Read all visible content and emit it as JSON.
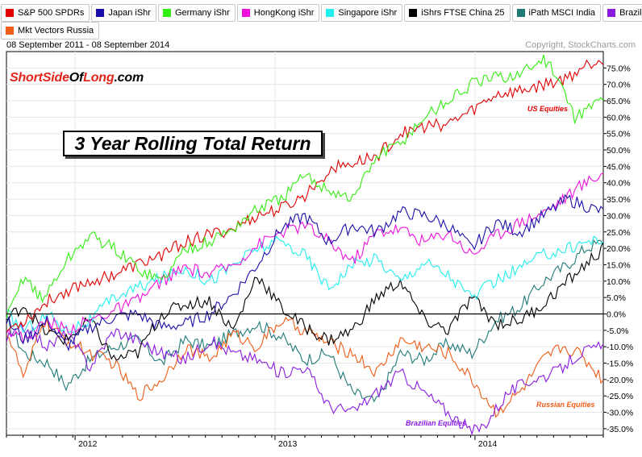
{
  "legend": [
    {
      "label": "S&P 500 SPDRs",
      "color": "#e00000"
    },
    {
      "label": "Japan iShr",
      "color": "#1a0fa8"
    },
    {
      "label": "Germany iShr",
      "color": "#33ee11"
    },
    {
      "label": "HongKong iShr",
      "color": "#ee11dd"
    },
    {
      "label": "Singapore iShr",
      "color": "#22eeee"
    },
    {
      "label": "iShrs FTSE China 25",
      "color": "#000000"
    },
    {
      "label": "iPath MSCI India",
      "color": "#1f7a78"
    },
    {
      "label": "Brazil iShr",
      "color": "#8a1be0"
    },
    {
      "label": "Mkt Vectors Russia",
      "color": "#ee5b16"
    }
  ],
  "header": {
    "date_range": "08 September 2011 - 08 September 2014",
    "copyright": "Copyright, StockCharts.com"
  },
  "watermark": {
    "part1": "ShortSide",
    "part2": "Of",
    "part3": "Long",
    "part4": ".com"
  },
  "title": "3 Year Rolling Total Return",
  "chart_data": {
    "type": "line",
    "title": "3 Year Rolling Total Return",
    "x_range": [
      "2011-09-08",
      "2014-09-08"
    ],
    "x_ticks": [
      "2012",
      "2013",
      "2014"
    ],
    "ylim": [
      -37,
      80
    ],
    "y_ticks": [
      "75.0%",
      "70.0%",
      "65.0%",
      "60.0%",
      "55.0%",
      "50.0%",
      "45.0%",
      "40.0%",
      "35.0%",
      "30.0%",
      "25.0%",
      "20.0%",
      "15.0%",
      "10.0%",
      "5.0%",
      "0.0%",
      "-5.0%",
      "-10.0%",
      "-15.0%",
      "-20.0%",
      "-25.0%",
      "-30.0%",
      "-35.0%"
    ],
    "y_tick_values": [
      75,
      70,
      65,
      60,
      55,
      50,
      45,
      40,
      35,
      30,
      25,
      20,
      15,
      10,
      5,
      0,
      -5,
      -10,
      -15,
      -20,
      -25,
      -30,
      -35
    ],
    "series": [
      {
        "name": "iPath MSCI India",
        "color": "#1f7a78",
        "x": [
          0,
          0.03,
          0.07,
          0.1,
          0.14,
          0.18,
          0.22,
          0.26,
          0.3,
          0.34,
          0.38,
          0.42,
          0.46,
          0.5,
          0.54,
          0.58,
          0.62,
          0.66,
          0.7,
          0.74,
          0.78,
          0.82,
          0.86,
          0.9,
          0.94,
          0.97,
          1
        ],
        "y": [
          -2,
          -12,
          -15,
          -22,
          -14,
          -10,
          -8,
          -15,
          -8,
          -10,
          -6,
          -3,
          -7,
          -14,
          -12,
          -24,
          -27,
          -12,
          -14,
          -9,
          -12,
          -2,
          2,
          10,
          15,
          20,
          22
        ]
      },
      {
        "name": "Mkt Vectors Russia",
        "color": "#ee5b16",
        "x": [
          0,
          0.03,
          0.06,
          0.1,
          0.14,
          0.18,
          0.22,
          0.26,
          0.3,
          0.34,
          0.38,
          0.42,
          0.46,
          0.5,
          0.54,
          0.58,
          0.62,
          0.66,
          0.7,
          0.74,
          0.78,
          0.82,
          0.86,
          0.9,
          0.93,
          0.96,
          1
        ],
        "y": [
          -5,
          -20,
          -2,
          -8,
          -12,
          -15,
          -25,
          -20,
          -10,
          -14,
          -6,
          -10,
          -2,
          -5,
          -9,
          -12,
          -18,
          -8,
          -10,
          -12,
          -20,
          -30,
          -24,
          -14,
          -10,
          -12,
          -20
        ]
      },
      {
        "name": "Brazil iShr",
        "color": "#8a1be0",
        "x": [
          0,
          0.03,
          0.07,
          0.1,
          0.14,
          0.18,
          0.22,
          0.26,
          0.3,
          0.34,
          0.38,
          0.42,
          0.46,
          0.5,
          0.54,
          0.58,
          0.62,
          0.66,
          0.7,
          0.74,
          0.78,
          0.8,
          0.84,
          0.88,
          0.92,
          0.96,
          1
        ],
        "y": [
          -8,
          -4,
          -10,
          -6,
          -16,
          -5,
          -8,
          -12,
          -14,
          -8,
          -12,
          -14,
          -18,
          -16,
          -28,
          -30,
          -24,
          -18,
          -24,
          -30,
          -36,
          -34,
          -24,
          -20,
          -18,
          -12,
          -10
        ]
      },
      {
        "name": "iShrs FTSE China 25",
        "color": "#000000",
        "x": [
          0,
          0.03,
          0.06,
          0.1,
          0.14,
          0.18,
          0.22,
          0.26,
          0.3,
          0.34,
          0.38,
          0.42,
          0.46,
          0.5,
          0.54,
          0.58,
          0.62,
          0.66,
          0.7,
          0.74,
          0.78,
          0.82,
          0.86,
          0.9,
          0.94,
          0.97,
          1
        ],
        "y": [
          -2,
          3,
          -5,
          -8,
          -2,
          -14,
          -12,
          0,
          3,
          4,
          -5,
          12,
          2,
          -4,
          -8,
          -5,
          5,
          10,
          -2,
          -5,
          5,
          -3,
          -2,
          3,
          10,
          15,
          20
        ]
      },
      {
        "name": "Singapore iShr",
        "color": "#22eeee",
        "x": [
          0,
          0.03,
          0.07,
          0.1,
          0.14,
          0.18,
          0.22,
          0.26,
          0.3,
          0.34,
          0.38,
          0.42,
          0.46,
          0.5,
          0.54,
          0.58,
          0.62,
          0.66,
          0.7,
          0.74,
          0.78,
          0.82,
          0.86,
          0.9,
          0.94,
          0.97,
          1
        ],
        "y": [
          0,
          -5,
          0,
          -5,
          -2,
          5,
          8,
          11,
          14,
          10,
          15,
          20,
          22,
          18,
          8,
          15,
          17,
          10,
          16,
          12,
          5,
          10,
          14,
          18,
          20,
          22,
          23
        ]
      },
      {
        "name": "HongKong iShr",
        "color": "#ee11dd",
        "x": [
          0,
          0.03,
          0.07,
          0.1,
          0.14,
          0.18,
          0.22,
          0.26,
          0.3,
          0.34,
          0.38,
          0.42,
          0.46,
          0.5,
          0.54,
          0.58,
          0.62,
          0.66,
          0.7,
          0.74,
          0.78,
          0.82,
          0.86,
          0.9,
          0.94,
          0.97,
          1
        ],
        "y": [
          -4,
          -8,
          -2,
          -5,
          -2,
          1,
          4,
          10,
          14,
          12,
          15,
          21,
          25,
          27,
          22,
          16,
          25,
          26,
          22,
          25,
          18,
          24,
          28,
          31,
          36,
          40,
          43
        ]
      },
      {
        "name": "Japan iShr",
        "color": "#1a0fa8",
        "x": [
          0,
          0.03,
          0.07,
          0.1,
          0.14,
          0.18,
          0.22,
          0.26,
          0.3,
          0.34,
          0.38,
          0.42,
          0.46,
          0.5,
          0.54,
          0.58,
          0.62,
          0.66,
          0.7,
          0.74,
          0.78,
          0.82,
          0.86,
          0.9,
          0.94,
          0.97,
          1
        ],
        "y": [
          -2,
          -8,
          -2,
          -10,
          -4,
          -1,
          0,
          -4,
          -3,
          0,
          6,
          15,
          26,
          30,
          22,
          27,
          25,
          31,
          30,
          27,
          20,
          28,
          25,
          30,
          35,
          33,
          31
        ]
      },
      {
        "name": "S&P 500 SPDRs",
        "color": "#e00000",
        "x": [
          0,
          0.03,
          0.07,
          0.1,
          0.14,
          0.18,
          0.22,
          0.26,
          0.3,
          0.34,
          0.38,
          0.42,
          0.46,
          0.5,
          0.54,
          0.58,
          0.62,
          0.66,
          0.7,
          0.74,
          0.78,
          0.82,
          0.86,
          0.9,
          0.94,
          0.97,
          1
        ],
        "y": [
          -5,
          -2,
          4,
          7,
          10,
          12,
          15,
          18,
          22,
          24,
          26,
          30,
          32,
          36,
          44,
          46,
          48,
          55,
          57,
          58,
          62,
          67,
          68,
          70,
          72,
          76,
          78
        ]
      },
      {
        "name": "Germany iShr",
        "color": "#33ee11",
        "x": [
          0,
          0.03,
          0.06,
          0.1,
          0.14,
          0.18,
          0.22,
          0.26,
          0.3,
          0.34,
          0.38,
          0.42,
          0.46,
          0.5,
          0.54,
          0.58,
          0.62,
          0.66,
          0.7,
          0.74,
          0.78,
          0.82,
          0.86,
          0.9,
          0.93,
          0.95,
          0.97,
          1
        ],
        "y": [
          -2,
          12,
          4,
          16,
          24,
          20,
          14,
          10,
          20,
          22,
          26,
          32,
          35,
          42,
          38,
          35,
          48,
          52,
          60,
          65,
          70,
          72,
          73,
          78,
          70,
          60,
          62,
          66
        ]
      }
    ],
    "annotations": [
      "US Equities",
      "Russian Equities",
      "Brazilian Equities"
    ]
  }
}
